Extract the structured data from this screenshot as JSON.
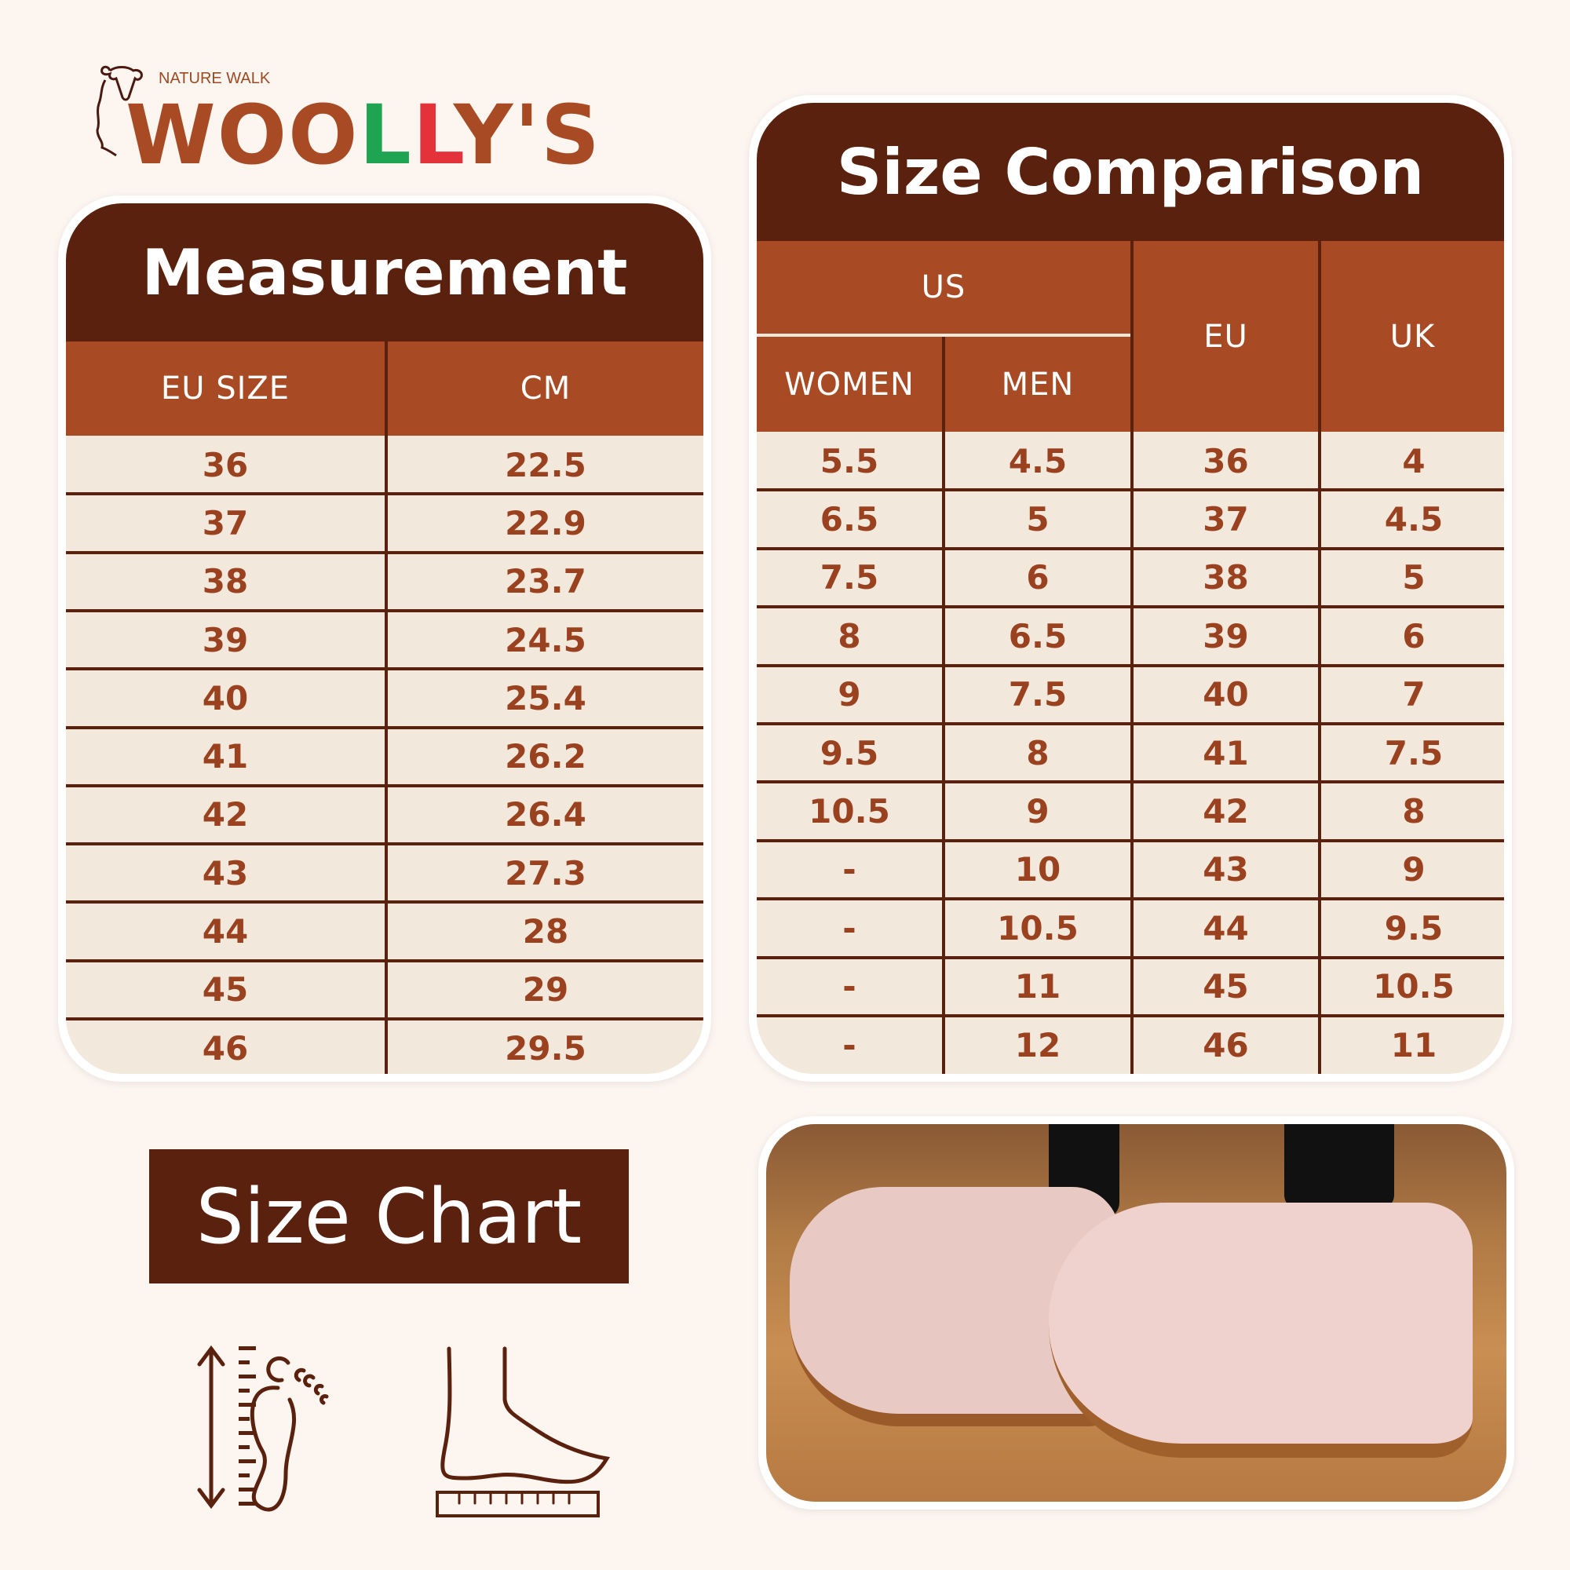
{
  "brand": {
    "tagline": "NATURE WALK",
    "name": "WOOLLY'S",
    "colors": {
      "dark": "#5a220e",
      "accent": "#a84b24",
      "green": "#1fa552",
      "red": "#e3323a"
    }
  },
  "measurement": {
    "title": "Measurement",
    "headers": [
      "EU SIZE",
      "CM"
    ],
    "rows": [
      [
        "36",
        "22.5"
      ],
      [
        "37",
        "22.9"
      ],
      [
        "38",
        "23.7"
      ],
      [
        "39",
        "24.5"
      ],
      [
        "40",
        "25.4"
      ],
      [
        "41",
        "26.2"
      ],
      [
        "42",
        "26.4"
      ],
      [
        "43",
        "27.3"
      ],
      [
        "44",
        "28"
      ],
      [
        "45",
        "29"
      ],
      [
        "46",
        "29.5"
      ]
    ]
  },
  "comparison": {
    "title": "Size Comparison",
    "group": "US",
    "headers": [
      "WOMEN",
      "MEN",
      "EU",
      "UK"
    ],
    "rows": [
      [
        "5.5",
        "4.5",
        "36",
        "4"
      ],
      [
        "6.5",
        "5",
        "37",
        "4.5"
      ],
      [
        "7.5",
        "6",
        "38",
        "5"
      ],
      [
        "8",
        "6.5",
        "39",
        "6"
      ],
      [
        "9",
        "7.5",
        "40",
        "7"
      ],
      [
        "9.5",
        "8",
        "41",
        "7.5"
      ],
      [
        "10.5",
        "9",
        "42",
        "8"
      ],
      [
        "-",
        "10",
        "43",
        "9"
      ],
      [
        "-",
        "10.5",
        "44",
        "9.5"
      ],
      [
        "-",
        "11",
        "45",
        "10.5"
      ],
      [
        "-",
        "12",
        "46",
        "11"
      ]
    ]
  },
  "size_chart_label": "Size Chart",
  "icons": [
    "foot-length-ruler-icon",
    "foot-side-ruler-icon"
  ]
}
